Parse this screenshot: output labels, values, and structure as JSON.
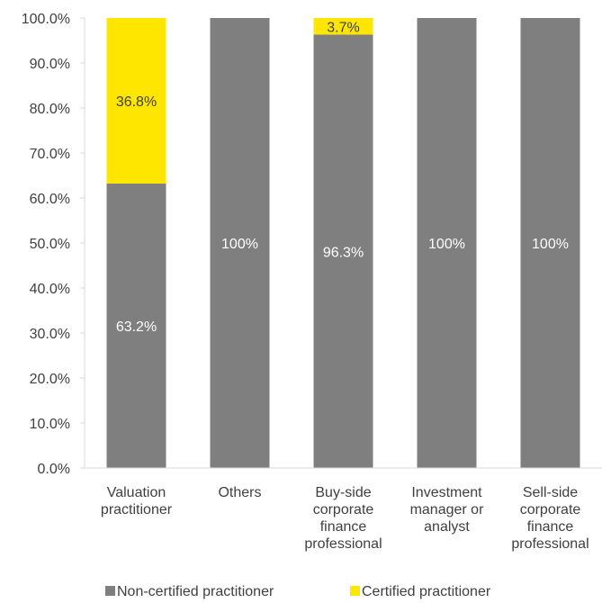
{
  "chart_data": {
    "type": "bar",
    "stacked": true,
    "categories": [
      [
        "Valuation",
        "practitioner"
      ],
      [
        "Others"
      ],
      [
        "Buy-side",
        "corporate",
        "finance",
        "professional"
      ],
      [
        "Investment",
        "manager or",
        "analyst"
      ],
      [
        "Sell-side",
        "corporate",
        "finance",
        "professional"
      ]
    ],
    "series": [
      {
        "name": "Non-certified practitioner",
        "color": "#7f7f7f",
        "label_color": "#ffffff",
        "values": [
          63.2,
          100,
          96.3,
          100,
          100
        ],
        "labels": [
          "63.2%",
          "100%",
          "96.3%",
          "100%",
          "100%"
        ]
      },
      {
        "name": "Certified practitioner",
        "color": "#ffe600",
        "label_color": "#404040",
        "values": [
          36.8,
          0,
          3.7,
          0,
          0
        ],
        "labels": [
          "36.8%",
          "",
          "3.7%",
          "",
          ""
        ]
      }
    ],
    "ylim": [
      0,
      100
    ],
    "y_ticks": [
      "0.0%",
      "10.0%",
      "20.0%",
      "30.0%",
      "40.0%",
      "50.0%",
      "60.0%",
      "70.0%",
      "80.0%",
      "90.0%",
      "100.0%"
    ],
    "title": "",
    "xlabel": "",
    "ylabel": "",
    "grid": false,
    "legend_position": "bottom"
  }
}
